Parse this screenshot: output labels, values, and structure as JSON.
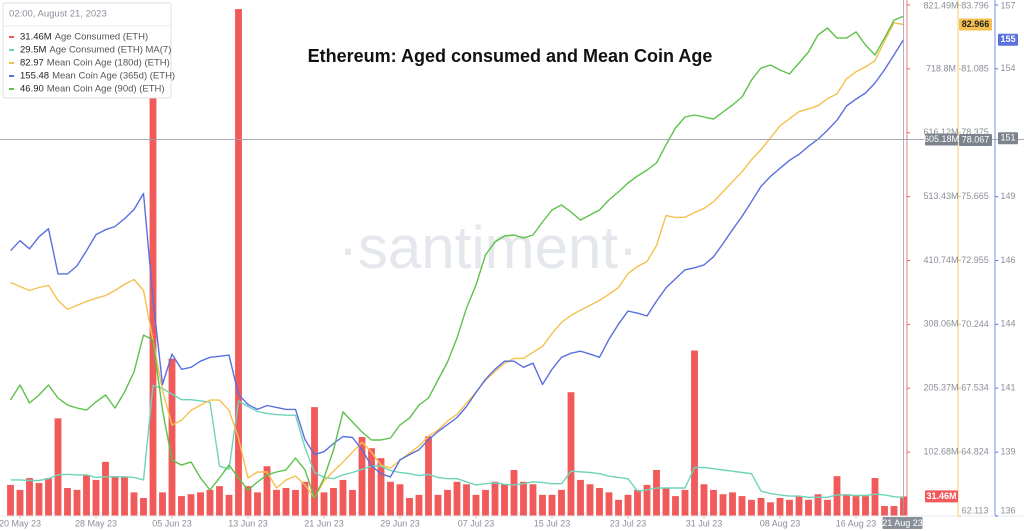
{
  "chart_data": {
    "type": "line",
    "title": "Ethereum: Aged consumed and Mean Coin Age",
    "watermark": "·santiment·",
    "legend": {
      "title": "02:00, August 21, 2023",
      "values": [
        {
          "value": 31.46,
          "label": "31.46M"
        },
        {
          "value": 29.5,
          "label": "29.5M"
        },
        82.97,
        155.48,
        {
          "value": 46.9,
          "label": "46.90"
        }
      ]
    },
    "x": [
      "2023-05-19",
      "2023-05-20",
      "2023-05-21",
      "2023-05-22",
      "2023-05-23",
      "2023-05-24",
      "2023-05-25",
      "2023-05-26",
      "2023-05-27",
      "2023-05-28",
      "2023-05-29",
      "2023-05-30",
      "2023-05-31",
      "2023-06-01",
      "2023-06-02",
      "2023-06-03",
      "2023-06-04",
      "2023-06-05",
      "2023-06-06",
      "2023-06-07",
      "2023-06-08",
      "2023-06-09",
      "2023-06-10",
      "2023-06-11",
      "2023-06-12",
      "2023-06-13",
      "2023-06-14",
      "2023-06-15",
      "2023-06-16",
      "2023-06-17",
      "2023-06-18",
      "2023-06-19",
      "2023-06-20",
      "2023-06-21",
      "2023-06-22",
      "2023-06-23",
      "2023-06-24",
      "2023-06-25",
      "2023-06-26",
      "2023-06-27",
      "2023-06-28",
      "2023-06-29",
      "2023-06-30",
      "2023-07-01",
      "2023-07-02",
      "2023-07-03",
      "2023-07-04",
      "2023-07-05",
      "2023-07-06",
      "2023-07-07",
      "2023-07-08",
      "2023-07-09",
      "2023-07-10",
      "2023-07-11",
      "2023-07-12",
      "2023-07-13",
      "2023-07-14",
      "2023-07-15",
      "2023-07-16",
      "2023-07-17",
      "2023-07-18",
      "2023-07-19",
      "2023-07-20",
      "2023-07-21",
      "2023-07-22",
      "2023-07-23",
      "2023-07-24",
      "2023-07-25",
      "2023-07-26",
      "2023-07-27",
      "2023-07-28",
      "2023-07-29",
      "2023-07-30",
      "2023-07-31",
      "2023-08-01",
      "2023-08-02",
      "2023-08-03",
      "2023-08-04",
      "2023-08-05",
      "2023-08-06",
      "2023-08-07",
      "2023-08-08",
      "2023-08-09",
      "2023-08-10",
      "2023-08-11",
      "2023-08-12",
      "2023-08-13",
      "2023-08-14",
      "2023-08-15",
      "2023-08-16",
      "2023-08-17",
      "2023-08-18",
      "2023-08-19",
      "2023-08-20",
      "2023-08-21"
    ],
    "xlim": [
      "2023-05-18",
      "2023-08-22"
    ],
    "xticks": [
      {
        "value": "2023-05-20",
        "label": "20 May 23"
      },
      {
        "value": "2023-05-28",
        "label": "28 May 23"
      },
      {
        "value": "2023-06-05",
        "label": "05 Jun 23"
      },
      {
        "value": "2023-06-13",
        "label": "13 Jun 23"
      },
      {
        "value": "2023-06-21",
        "label": "21 Jun 23"
      },
      {
        "value": "2023-06-29",
        "label": "29 Jun 23"
      },
      {
        "value": "2023-07-07",
        "label": "07 Jul 23"
      },
      {
        "value": "2023-07-15",
        "label": "15 Jul 23"
      },
      {
        "value": "2023-07-23",
        "label": "23 Jul 23"
      },
      {
        "value": "2023-07-31",
        "label": "31 Jul 23"
      },
      {
        "value": "2023-08-08",
        "label": "08 Aug 23"
      },
      {
        "value": "2023-08-16",
        "label": "16 Aug 23"
      }
    ],
    "ylim": [
      0,
      821.49
    ],
    "yticks": [
      {
        "value": 102.68,
        "label": "102.68M"
      },
      {
        "value": 205.37,
        "label": "205.37M"
      },
      {
        "value": 308.06,
        "label": "308.06M"
      },
      {
        "value": 410.74,
        "label": "410.74M"
      },
      {
        "value": 513.43,
        "label": "513.43M"
      },
      {
        "value": 616.12,
        "label": "616.12M"
      },
      {
        "value": 718.8,
        "label": "718.8M"
      },
      {
        "value": 821.49,
        "label": "821.49M"
      }
    ],
    "y2lim": [
      62.113,
      83.796
    ],
    "y2ticks": [
      62.113,
      64.824,
      67.534,
      70.244,
      72.955,
      75.665,
      78.375,
      81.085,
      83.796
    ],
    "y3lim": [
      136,
      156.9
    ],
    "y3ticks": [
      136,
      {
        "value": 138.61,
        "label": "139"
      },
      {
        "value": 141.23,
        "label": "141"
      },
      {
        "value": 143.84,
        "label": "144"
      },
      {
        "value": 146.45,
        "label": "146"
      },
      {
        "value": 149.06,
        "label": "149"
      },
      {
        "value": 154.29,
        "label": "154"
      },
      {
        "value": 156.9,
        "label": "157"
      }
    ],
    "y4lim": [
      20,
      47.5
    ],
    "series": [
      {
        "name": "Age Consumed (ETH)",
        "type": "bar",
        "axis": "y",
        "color": "#f05a5a",
        "values": [
          50,
          42,
          61,
          53,
          61,
          157,
          45,
          42,
          66,
          58,
          87,
          64,
          63,
          38,
          29,
          720,
          38,
          253,
          32,
          35,
          38,
          42,
          48,
          34,
          815,
          48,
          38,
          80,
          42,
          45,
          42,
          55,
          175,
          38,
          45,
          58,
          42,
          127,
          109,
          93,
          55,
          51,
          29,
          34,
          128,
          34,
          42,
          55,
          51,
          34,
          42,
          55,
          51,
          74,
          55,
          51,
          34,
          34,
          42,
          199,
          58,
          51,
          45,
          38,
          26,
          34,
          42,
          50,
          74,
          45,
          32,
          42,
          266,
          51,
          42,
          35,
          38,
          32,
          26,
          29,
          22,
          29,
          26,
          32,
          26,
          35,
          26,
          64,
          35,
          32,
          32,
          61,
          16,
          16,
          31.46
        ]
      },
      {
        "name": "Age Consumed (ETH) MA(7)",
        "type": "line",
        "axis": "y",
        "color": "#6fd3b8",
        "values": [
          58,
          58,
          57,
          57,
          60,
          66,
          67,
          66,
          66,
          62,
          63,
          63,
          63,
          62,
          58,
          210,
          205,
          196,
          187,
          187,
          185,
          183,
          80,
          75,
          185,
          176,
          168,
          165,
          163,
          162,
          162,
          110,
          70,
          62,
          60,
          66,
          70,
          75,
          80,
          80,
          73,
          70,
          68,
          65,
          67,
          62,
          60,
          60,
          55,
          50,
          52,
          53,
          51,
          50,
          52,
          55,
          54,
          52,
          52,
          72,
          71,
          70,
          68,
          64,
          62,
          60,
          40,
          42,
          45,
          45,
          45,
          45,
          78,
          78,
          76,
          74,
          72,
          70,
          68,
          40,
          36,
          34,
          32,
          32,
          30,
          30,
          30,
          34,
          34,
          33,
          33,
          35,
          34,
          31,
          29.5
        ]
      },
      {
        "name": "Mean Coin Age (180d) (ETH)",
        "type": "line",
        "axis": "y2",
        "color": "#f5c04f",
        "values": [
          72.02,
          71.85,
          71.68,
          71.81,
          71.9,
          71.26,
          70.88,
          71.05,
          71.22,
          71.35,
          71.47,
          71.68,
          71.94,
          72.15,
          71.68,
          69.57,
          67.45,
          65.97,
          66.18,
          66.6,
          66.81,
          67.03,
          67.03,
          66.6,
          65.42,
          63.72,
          63.98,
          63.98,
          63.3,
          63.64,
          63.81,
          63.43,
          62.88,
          63.6,
          64.02,
          64.4,
          64.82,
          65.25,
          64.82,
          64.27,
          64.15,
          64.48,
          64.78,
          65.08,
          65.5,
          65.76,
          66.14,
          66.43,
          66.9,
          67.37,
          67.87,
          68.25,
          68.59,
          68.8,
          68.8,
          69.06,
          69.31,
          69.86,
          70.33,
          70.63,
          70.84,
          71.05,
          71.26,
          71.52,
          71.81,
          72.4,
          72.7,
          72.91,
          73.59,
          74.86,
          74.78,
          74.79,
          74.99,
          75.16,
          75.45,
          75.88,
          76.3,
          76.72,
          77.23,
          77.66,
          78.16,
          78.67,
          78.97,
          79.27,
          79.39,
          79.52,
          79.82,
          80.03,
          80.66,
          80.96,
          81.17,
          81.43,
          82.27,
          83.04,
          82.97
        ]
      },
      {
        "name": "Mean Coin Age (365d) (ETH)",
        "type": "line",
        "axis": "y3",
        "color": "#5a6fe0",
        "values": [
          146.85,
          147.26,
          146.93,
          147.42,
          147.75,
          145.9,
          145.9,
          146.23,
          146.85,
          147.51,
          147.71,
          147.84,
          148.16,
          148.53,
          149.19,
          144.88,
          141.38,
          142.62,
          142,
          142.08,
          142.33,
          142.49,
          142.53,
          142.58,
          140.97,
          140.56,
          140.36,
          140.52,
          140.44,
          140.36,
          140.36,
          139.12,
          138.51,
          138.63,
          138.96,
          139.25,
          139.21,
          138.71,
          138.05,
          137.73,
          137.6,
          138.3,
          138.51,
          138.71,
          139.12,
          139.45,
          139.74,
          140.03,
          140.48,
          141.05,
          141.59,
          142,
          142.33,
          142.33,
          142.08,
          142.25,
          141.38,
          142,
          142.49,
          142.66,
          142.74,
          142.62,
          142.49,
          143.23,
          143.85,
          144.38,
          144.3,
          144.18,
          144.79,
          145.33,
          145.7,
          146.07,
          146.15,
          146.27,
          146.6,
          147.14,
          147.71,
          148.25,
          148.86,
          149.48,
          149.89,
          150.22,
          150.55,
          150.79,
          151.12,
          151.41,
          151.78,
          152.19,
          152.77,
          153.05,
          153.3,
          153.71,
          154.25,
          154.86,
          155.48
        ]
      },
      {
        "name": "Mean Coin Age (90d) (ETH)",
        "type": "line",
        "axis": "y4",
        "color": "#5cc24a",
        "values": [
          26.24,
          27.05,
          26.08,
          26.51,
          27.05,
          26.35,
          25.97,
          25.81,
          25.7,
          26.14,
          26.51,
          25.81,
          26.67,
          27.75,
          29.74,
          29.47,
          25.7,
          23.01,
          22.74,
          22.91,
          22.05,
          21.4,
          22.05,
          22.74,
          22.05,
          21.4,
          21.83,
          22.21,
          22.37,
          22.48,
          23.12,
          22.48,
          20.97,
          22.05,
          23.55,
          25.6,
          25.06,
          24.52,
          24.09,
          24.09,
          24.2,
          24.9,
          25.27,
          25.97,
          26.35,
          27.32,
          28.29,
          29.58,
          31.19,
          32.43,
          34.05,
          34.75,
          35.07,
          35.12,
          34.96,
          35.12,
          35.82,
          36.47,
          36.74,
          36.36,
          35.93,
          36.2,
          36.47,
          37.01,
          37.44,
          37.92,
          38.3,
          38.62,
          39,
          39.97,
          40.88,
          41.47,
          41.58,
          41.47,
          41.36,
          41.74,
          42.12,
          42.55,
          43.46,
          44.11,
          44.27,
          44,
          43.79,
          44.38,
          44.97,
          45.89,
          46.26,
          45.72,
          45.72,
          46.05,
          45.35,
          44.81,
          45.72,
          46.69,
          46.9
        ]
      }
    ],
    "last_value_labels": [
      {
        "axis": "y",
        "value": 31.46,
        "label": "31.46M"
      },
      {
        "axis": "y2",
        "value": 82.966
      },
      {
        "axis": "y3",
        "value": 155.48,
        "label": "155"
      }
    ],
    "crosshair": {
      "x": {
        "value": "2023-08-21",
        "label": "21 Aug 23"
      },
      "y": [
        {
          "axis": "y",
          "value": 605.18,
          "label": "605.18M"
        },
        {
          "axis": "y2",
          "value": 78.067
        },
        {
          "axis": "y3",
          "value": 151.45,
          "label": "151"
        }
      ]
    }
  }
}
